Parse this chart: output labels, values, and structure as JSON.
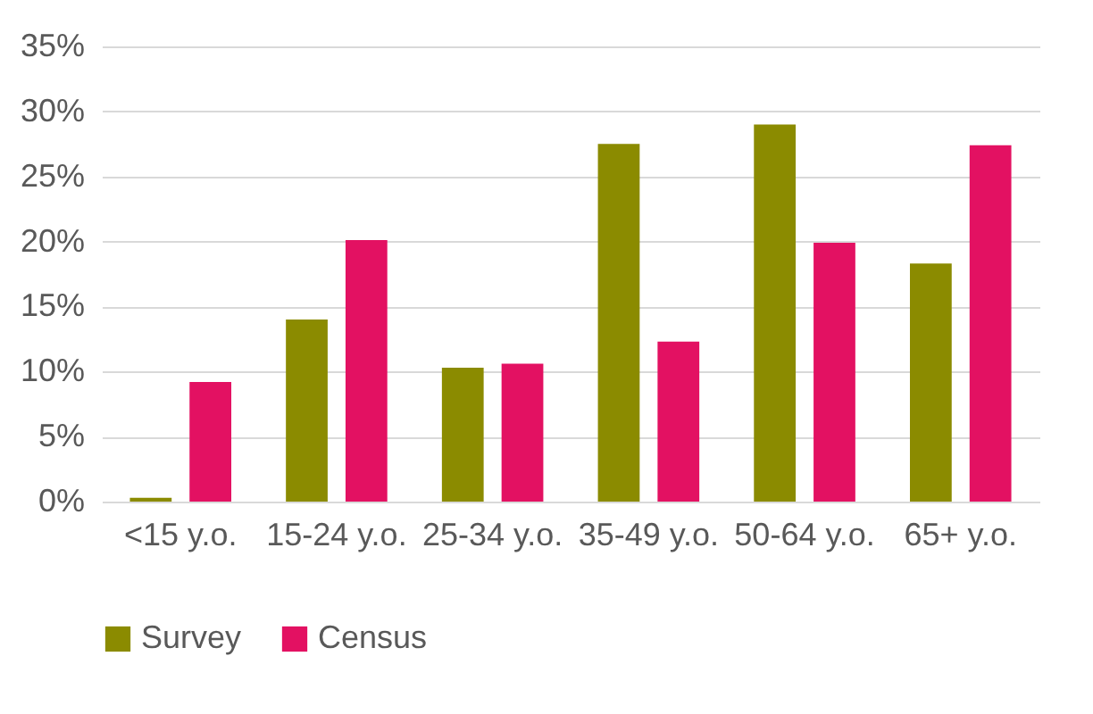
{
  "chart_data": {
    "type": "bar",
    "categories": [
      "<15 y.o.",
      "15-24 y.o.",
      "25-34 y.o.",
      "35-49 y.o.",
      "50-64 y.o.",
      "65+ y.o."
    ],
    "series": [
      {
        "name": "Survey",
        "color": "#8b8b00",
        "values": [
          0.3,
          14.0,
          10.3,
          27.5,
          29.0,
          18.3
        ]
      },
      {
        "name": "Census",
        "color": "#e31162",
        "values": [
          9.2,
          20.1,
          10.6,
          12.3,
          19.9,
          27.4
        ]
      }
    ],
    "ylim": [
      0,
      35
    ],
    "yticks": [
      {
        "value": 0,
        "label": "0%"
      },
      {
        "value": 5,
        "label": "5%"
      },
      {
        "value": 10,
        "label": "10%"
      },
      {
        "value": 15,
        "label": "15%"
      },
      {
        "value": 20,
        "label": "20%"
      },
      {
        "value": 25,
        "label": "25%"
      },
      {
        "value": 30,
        "label": "30%"
      },
      {
        "value": 35,
        "label": "35%"
      }
    ],
    "grid": "y",
    "legend": "bottom"
  }
}
